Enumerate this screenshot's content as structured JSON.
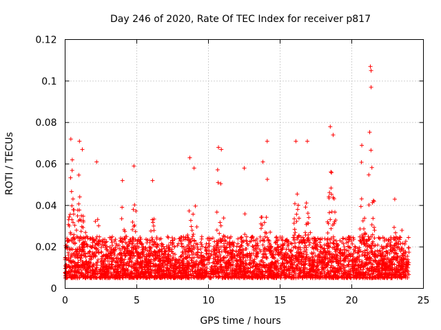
{
  "chart_data": {
    "type": "scatter",
    "title": "Day 246 of 2020, Rate Of TEC Index for receiver p817",
    "xlabel": "GPS time / hours",
    "ylabel": "ROTI / TECUs",
    "xlim": [
      0,
      25
    ],
    "ylim": [
      0,
      0.12
    ],
    "grid": true,
    "x_ticks": [
      0,
      5,
      10,
      15,
      20,
      25
    ],
    "x_tick_labels": [
      "0",
      "5",
      "10",
      "15",
      "20",
      "25"
    ],
    "y_ticks": [
      0,
      0.02,
      0.04,
      0.06,
      0.08,
      0.1,
      0.12
    ],
    "y_tick_labels": [
      "0",
      "0.02",
      "0.04",
      "0.06",
      "0.08",
      "0.1",
      "0.12"
    ],
    "marker": "plus",
    "color": "#ff0000",
    "series": [
      {
        "name": "ROTI",
        "x_range": [
          0,
          24
        ],
        "baseline_band": [
          0.005,
          0.025
        ],
        "peaks": [
          {
            "x": 0.4,
            "y": 0.072
          },
          {
            "x": 0.5,
            "y": 0.062
          },
          {
            "x": 1.0,
            "y": 0.071
          },
          {
            "x": 1.2,
            "y": 0.067
          },
          {
            "x": 2.2,
            "y": 0.061
          },
          {
            "x": 4.0,
            "y": 0.052
          },
          {
            "x": 4.8,
            "y": 0.059
          },
          {
            "x": 6.1,
            "y": 0.052
          },
          {
            "x": 8.7,
            "y": 0.063
          },
          {
            "x": 9.0,
            "y": 0.058
          },
          {
            "x": 10.7,
            "y": 0.068
          },
          {
            "x": 10.9,
            "y": 0.067
          },
          {
            "x": 12.5,
            "y": 0.058
          },
          {
            "x": 13.8,
            "y": 0.061
          },
          {
            "x": 14.1,
            "y": 0.071
          },
          {
            "x": 16.1,
            "y": 0.071
          },
          {
            "x": 16.9,
            "y": 0.071
          },
          {
            "x": 18.5,
            "y": 0.078
          },
          {
            "x": 18.7,
            "y": 0.074
          },
          {
            "x": 20.7,
            "y": 0.069
          },
          {
            "x": 21.3,
            "y": 0.107
          },
          {
            "x": 21.35,
            "y": 0.105
          },
          {
            "x": 21.35,
            "y": 0.097
          },
          {
            "x": 23.0,
            "y": 0.043
          },
          {
            "x": 23.5,
            "y": 0.028
          }
        ]
      }
    ]
  }
}
